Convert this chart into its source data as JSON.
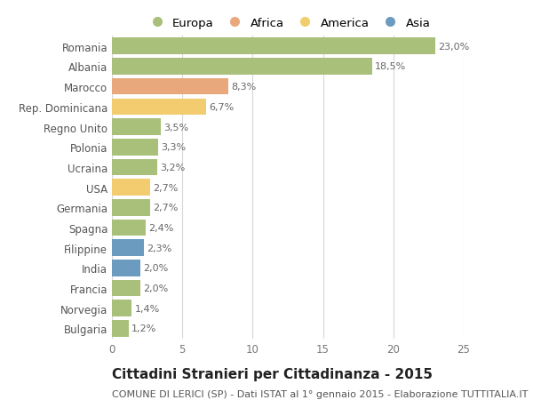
{
  "categories": [
    "Bulgaria",
    "Norvegia",
    "Francia",
    "India",
    "Filippine",
    "Spagna",
    "Germania",
    "USA",
    "Ucraina",
    "Polonia",
    "Regno Unito",
    "Rep. Dominicana",
    "Marocco",
    "Albania",
    "Romania"
  ],
  "values": [
    1.2,
    1.4,
    2.0,
    2.0,
    2.3,
    2.4,
    2.7,
    2.7,
    3.2,
    3.3,
    3.5,
    6.7,
    8.3,
    18.5,
    23.0
  ],
  "labels": [
    "1,2%",
    "1,4%",
    "2,0%",
    "2,0%",
    "2,3%",
    "2,4%",
    "2,7%",
    "2,7%",
    "3,2%",
    "3,3%",
    "3,5%",
    "6,7%",
    "8,3%",
    "18,5%",
    "23,0%"
  ],
  "colors": [
    "#a8c07a",
    "#a8c07a",
    "#a8c07a",
    "#6b9bbf",
    "#6b9bbf",
    "#a8c07a",
    "#a8c07a",
    "#f2cc6e",
    "#a8c07a",
    "#a8c07a",
    "#a8c07a",
    "#f2cc6e",
    "#e8a87c",
    "#a8c07a",
    "#a8c07a"
  ],
  "legend_labels": [
    "Europa",
    "Africa",
    "America",
    "Asia"
  ],
  "legend_colors": [
    "#a8c07a",
    "#e8a87c",
    "#f2cc6e",
    "#6b9bbf"
  ],
  "xlim": [
    0,
    25
  ],
  "xticks": [
    0,
    5,
    10,
    15,
    20,
    25
  ],
  "title": "Cittadini Stranieri per Cittadinanza - 2015",
  "subtitle": "COMUNE DI LERICI (SP) - Dati ISTAT al 1° gennaio 2015 - Elaborazione TUTTITALIA.IT",
  "bg_color": "#ffffff",
  "grid_color": "#d8d8d8",
  "bar_height": 0.82,
  "title_fontsize": 11,
  "subtitle_fontsize": 8,
  "label_fontsize": 8,
  "tick_fontsize": 8.5,
  "legend_fontsize": 9.5
}
